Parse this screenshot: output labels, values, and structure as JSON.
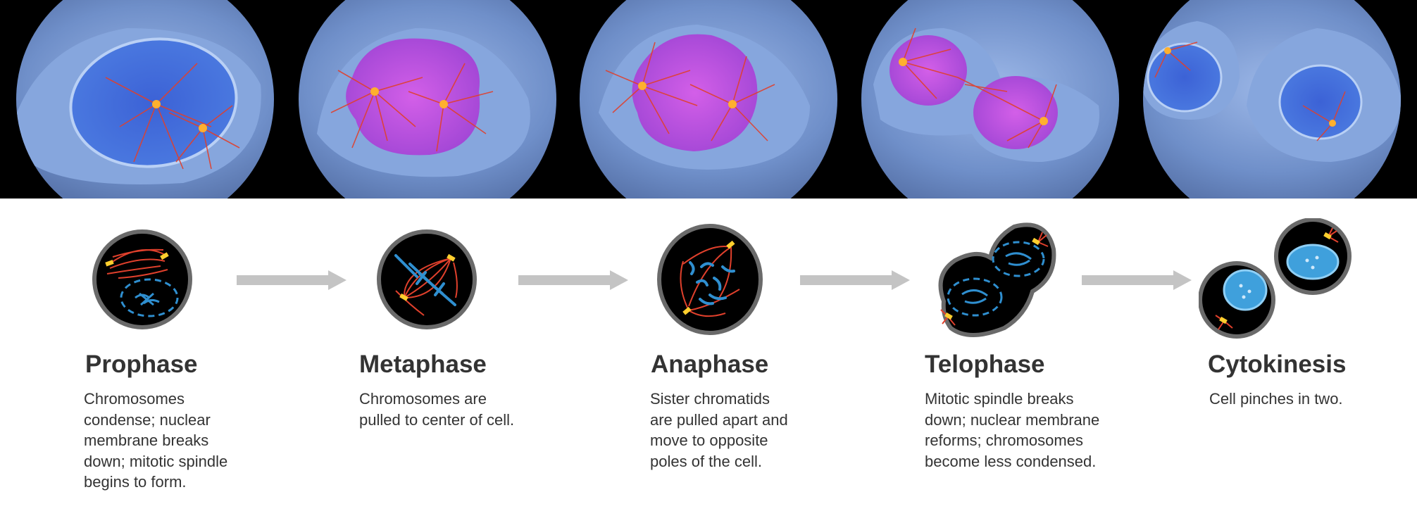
{
  "phases": [
    {
      "name": "Prophase",
      "description": "Chromosomes\ncondense; nuclear\nmembrane breaks\ndown; mitotic spindle\nbegins to form."
    },
    {
      "name": "Metaphase",
      "description": "Chromosomes are\npulled to center of cell."
    },
    {
      "name": "Anaphase",
      "description": "Sister chromatids\nare pulled apart and\nmove to opposite\npoles of the cell."
    },
    {
      "name": "Telophase",
      "description": "Mitotic spindle breaks\ndown; nuclear membrane\nreforms; chromosomes\nbecome less condensed."
    },
    {
      "name": "Cytokinesis",
      "description": "Cell pinches in two."
    }
  ],
  "colors": {
    "photo_background": "#000000",
    "cell_cytoplasm": "#7a9cd6",
    "nucleus": "#3f6fd8",
    "chromatin_pink": "#c04fd8",
    "spindle_red": "#e0402c",
    "centrosome_yellow": "#ffcf2e",
    "chromosome_blue": "#2f8fd0",
    "diagram_outline": "#6a6a6a",
    "arrow_gray": "#c4c4c4",
    "text": "#333333"
  }
}
